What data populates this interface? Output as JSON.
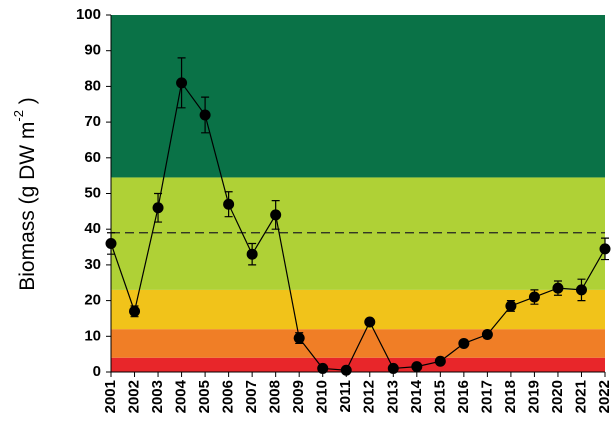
{
  "chart_data": {
    "type": "line",
    "y_label": {
      "text": "Biomass (g DW m",
      "superscript": "-2",
      "suffix": " )"
    },
    "x": [
      2001,
      2002,
      2003,
      2004,
      2005,
      2006,
      2007,
      2008,
      2009,
      2010,
      2011,
      2012,
      2013,
      2014,
      2015,
      2016,
      2017,
      2018,
      2019,
      2020,
      2021,
      2022
    ],
    "series": [
      {
        "color": "#000000",
        "values": [
          36,
          17,
          46,
          81,
          72,
          47,
          33,
          44,
          9.5,
          1,
          0.5,
          14,
          1,
          1.5,
          3,
          8,
          10.5,
          18.5,
          21,
          23.5,
          23,
          34.5
        ],
        "errors": [
          3,
          1.5,
          4,
          7,
          5,
          3.5,
          3,
          4,
          1.5,
          0.5,
          0.5,
          0.5,
          0.5,
          0.5,
          0.5,
          0.8,
          1,
          1.5,
          2,
          2,
          3,
          3
        ]
      }
    ],
    "bands": [
      {
        "from": 0,
        "to": 4,
        "color": "#e8262a"
      },
      {
        "from": 4,
        "to": 12,
        "color": "#f07e26"
      },
      {
        "from": 12,
        "to": 23,
        "color": "#f1c31a"
      },
      {
        "from": 23,
        "to": 54.5,
        "color": "#afd136"
      },
      {
        "from": 54.5,
        "to": 100,
        "color": "#0a7247"
      }
    ],
    "reference_line": 39,
    "xlim": [
      2001,
      2022
    ],
    "xticks": [
      2001,
      2002,
      2003,
      2004,
      2005,
      2006,
      2007,
      2008,
      2009,
      2010,
      2011,
      2012,
      2013,
      2014,
      2015,
      2016,
      2017,
      2018,
      2019,
      2020,
      2021,
      2022
    ],
    "ylim": [
      0,
      100
    ],
    "yticks": [
      0,
      10,
      20,
      30,
      40,
      50,
      60,
      70,
      80,
      90,
      100
    ]
  }
}
